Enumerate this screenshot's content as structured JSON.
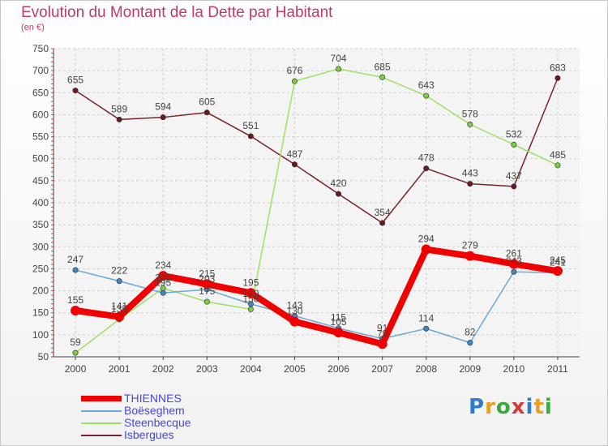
{
  "title": "Evolution du Montant de la Dette par Habitant",
  "subtitle": "(en €)",
  "logo": "Proxiti",
  "chart_data": {
    "type": "line",
    "x": [
      "2000",
      "2001",
      "2002",
      "2003",
      "2004",
      "2005",
      "2006",
      "2007",
      "2008",
      "2009",
      "2010",
      "2011"
    ],
    "ylim": [
      50,
      750
    ],
    "yticks": [
      50,
      100,
      150,
      200,
      250,
      300,
      350,
      400,
      450,
      500,
      550,
      600,
      650,
      700,
      750
    ],
    "grid": true,
    "legend_placement": "bottom-left",
    "series": [
      {
        "name": "Isbergues",
        "color": "#7a2228",
        "marker": "#6a1820",
        "values": [
          655,
          589,
          594,
          605,
          551,
          487,
          420,
          354,
          478,
          443,
          437,
          683
        ]
      },
      {
        "name": "Steenbecque",
        "color": "#9ee066",
        "marker": "#7ccf3c",
        "values": [
          59,
          135,
          206,
          175,
          158,
          676,
          704,
          685,
          643,
          578,
          532,
          485
        ]
      },
      {
        "name": "Boëseghem",
        "color": "#6aa8d8",
        "marker": "#3f86c4",
        "values": [
          247,
          222,
          195,
          203,
          170,
          143,
          115,
          91,
          114,
          82,
          243,
          241
        ]
      },
      {
        "name": "THIENNES",
        "color": "#f00000",
        "marker": "#f00000",
        "values": [
          155,
          141,
          234,
          215,
          195,
          130,
          105,
          79,
          294,
          279,
          261,
          245
        ]
      }
    ]
  }
}
